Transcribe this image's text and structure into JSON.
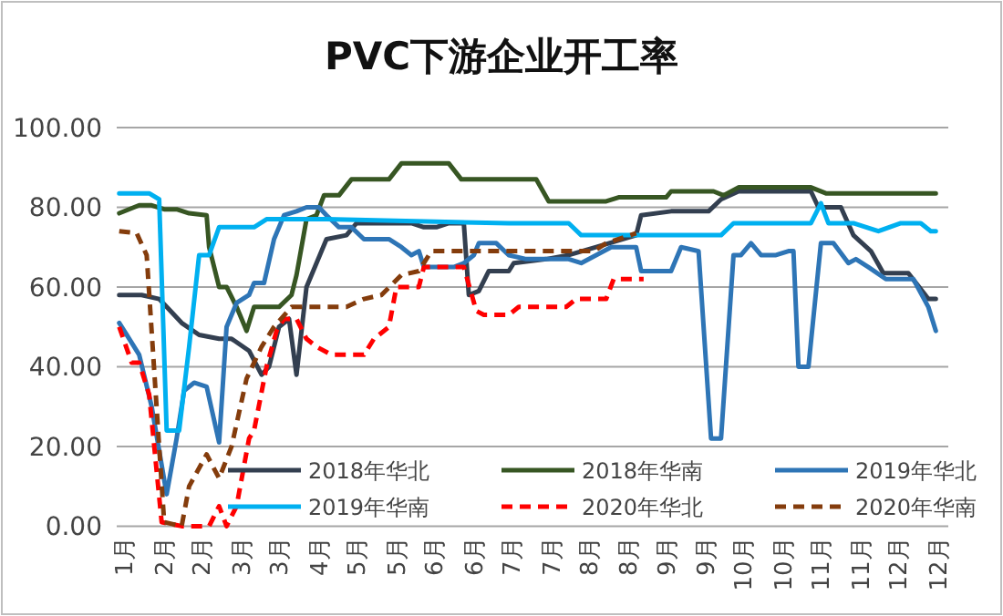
{
  "chart_data": {
    "type": "line",
    "title": "PVC下游企业开工率",
    "xlim": [
      "--01-25",
      "--12-24"
    ],
    "ylim": [
      0,
      100
    ],
    "xticks": [
      {
        "value": "--01-28",
        "label": "1月"
      },
      {
        "value": "--02-13",
        "label": "2月"
      },
      {
        "value": "--02-28",
        "label": "2月"
      },
      {
        "value": "--03-16",
        "label": "3月"
      },
      {
        "value": "--03-31",
        "label": "3月"
      },
      {
        "value": "--04-16",
        "label": "4月"
      },
      {
        "value": "--05-01",
        "label": "5月"
      },
      {
        "value": "--05-17",
        "label": "5月"
      },
      {
        "value": "--06-01",
        "label": "6月"
      },
      {
        "value": "--06-17",
        "label": "6月"
      },
      {
        "value": "--07-02",
        "label": "7月"
      },
      {
        "value": "--07-18",
        "label": "7月"
      },
      {
        "value": "--08-02",
        "label": "8月"
      },
      {
        "value": "--08-18",
        "label": "8月"
      },
      {
        "value": "--09-02",
        "label": "9月"
      },
      {
        "value": "--09-18",
        "label": "9月"
      },
      {
        "value": "--10-03",
        "label": "10月"
      },
      {
        "value": "--10-19",
        "label": "10月"
      },
      {
        "value": "--11-03",
        "label": "11月"
      },
      {
        "value": "--11-19",
        "label": "11月"
      },
      {
        "value": "--12-04",
        "label": "12月"
      },
      {
        "value": "--12-20",
        "label": "12月"
      }
    ],
    "yticks": [
      {
        "value": 0,
        "label": "0.00"
      },
      {
        "value": 20,
        "label": "20.00"
      },
      {
        "value": 40,
        "label": "40.00"
      },
      {
        "value": 60,
        "label": "60.00"
      },
      {
        "value": 80,
        "label": "80.00"
      },
      {
        "value": 100,
        "label": "100.00"
      }
    ],
    "grid": "y",
    "legend": "bottom",
    "marker": "none",
    "series": [
      {
        "name": "2018年华北",
        "color": "#333f50",
        "line_style": "solid",
        "x": [
          "--01-26",
          "--02-04",
          "--02-11",
          "--02-20",
          "--02-27",
          "--03-07",
          "--03-12",
          "--03-19",
          "--03-24",
          "--03-27",
          "--03-31",
          "--04-04",
          "--04-07",
          "--04-11",
          "--04-19",
          "--04-27",
          "--05-01",
          "--05-14",
          "--05-23",
          "--05-28",
          "--06-02",
          "--06-07",
          "--06-13",
          "--06-15",
          "--06-19",
          "--06-23",
          "--07-01",
          "--07-03",
          "--07-16",
          "--07-25",
          "--08-05",
          "--08-21",
          "--08-23",
          "--09-04",
          "--09-19",
          "--09-24",
          "--10-01",
          "--10-16",
          "--10-30",
          "--11-02",
          "--11-11",
          "--11-16",
          "--11-23",
          "--11-28",
          "--12-08",
          "--12-16",
          "--12-19"
        ],
        "values": [
          58,
          58,
          57,
          51,
          48,
          47,
          47,
          44,
          38,
          40,
          50,
          52,
          38,
          60,
          72,
          73,
          76,
          76,
          76,
          75,
          75,
          76,
          76,
          58,
          59,
          64,
          64,
          66,
          67,
          68,
          70,
          73,
          78,
          79,
          79,
          82,
          84,
          84,
          84,
          80,
          80,
          73,
          69,
          63.5,
          63.5,
          57,
          57
        ]
      },
      {
        "name": "2018年华南",
        "color": "#375623",
        "line_style": "solid",
        "x": [
          "--01-26",
          "--02-03",
          "--02-08",
          "--02-13",
          "--02-18",
          "--02-23",
          "--03-02",
          "--03-03",
          "--03-07",
          "--03-10",
          "--03-14",
          "--03-18",
          "--03-21",
          "--03-31",
          "--04-05",
          "--04-07",
          "--04-11",
          "--04-15",
          "--04-18",
          "--04-24",
          "--04-29",
          "--05-09",
          "--05-14",
          "--05-19",
          "--06-07",
          "--06-12",
          "--07-01",
          "--07-12",
          "--07-17",
          "--08-09",
          "--08-14",
          "--09-02",
          "--09-04",
          "--09-21",
          "--09-25",
          "--10-01",
          "--10-30",
          "--11-05",
          "--12-19"
        ],
        "values": [
          78.5,
          80.5,
          80.5,
          79.5,
          79.5,
          78.5,
          78,
          70,
          60,
          60,
          55,
          49,
          55,
          55,
          58,
          63,
          77,
          78,
          83,
          83,
          87,
          87,
          87,
          91,
          91,
          87,
          87,
          87,
          81.5,
          81.5,
          82.5,
          82.5,
          84,
          84,
          83,
          85,
          85,
          83.5,
          83.5
        ]
      },
      {
        "name": "2019年华北",
        "color": "#2e75b6",
        "line_style": "solid",
        "x": [
          "--01-26",
          "--01-29",
          "--02-03",
          "--02-08",
          "--02-14",
          "--02-18",
          "--02-21",
          "--02-25",
          "--03-02",
          "--03-07",
          "--03-10",
          "--03-14",
          "--03-19",
          "--03-21",
          "--03-25",
          "--03-29",
          "--04-02",
          "--04-07",
          "--04-11",
          "--04-16",
          "--04-19",
          "--04-24",
          "--04-29",
          "--05-04",
          "--05-14",
          "--05-19",
          "--05-23",
          "--05-26",
          "--05-28",
          "--06-09",
          "--06-13",
          "--06-17",
          "--06-19",
          "--06-26",
          "--07-01",
          "--07-08",
          "--07-16",
          "--07-25",
          "--07-30",
          "--08-05",
          "--08-11",
          "--08-21",
          "--08-23",
          "--09-04",
          "--09-08",
          "--09-15",
          "--09-20",
          "--09-24",
          "--09-29",
          "--10-02",
          "--10-06",
          "--10-10",
          "--10-16",
          "--10-21",
          "--10-23",
          "--10-25",
          "--10-29",
          "--11-03",
          "--11-08",
          "--11-14",
          "--11-17",
          "--11-22",
          "--11-29",
          "--12-10",
          "--12-16",
          "--12-19"
        ],
        "values": [
          51,
          48,
          43,
          30,
          8,
          22,
          34,
          36,
          35,
          21,
          50,
          56,
          58,
          61,
          61,
          72,
          78,
          79,
          80,
          80,
          78,
          75,
          75,
          72,
          72,
          70,
          68,
          69,
          65,
          65,
          66,
          68,
          71,
          71,
          68,
          67,
          67,
          67,
          66,
          68,
          70,
          70,
          64,
          64,
          70,
          69,
          22,
          22,
          68,
          68,
          71,
          68,
          68,
          69,
          69,
          40,
          40,
          71,
          71,
          66,
          67,
          65,
          62,
          62,
          55,
          49
        ]
      },
      {
        "name": "2019年华南",
        "color": "#00b0f0",
        "line_style": "solid",
        "x": [
          "--01-26",
          "--02-07",
          "--02-11",
          "--02-14",
          "--02-19",
          "--02-23",
          "--02-27",
          "--03-03",
          "--03-07",
          "--03-21",
          "--03-26",
          "--04-10",
          "--04-19",
          "--07-01",
          "--07-25",
          "--07-30",
          "--09-24",
          "--09-29",
          "--10-30",
          "--11-03",
          "--11-06",
          "--11-16",
          "--11-26",
          "--12-05",
          "--12-13",
          "--12-17",
          "--12-19"
        ],
        "values": [
          83.5,
          83.5,
          82,
          24,
          24,
          45,
          68,
          68,
          75,
          75,
          77,
          77,
          77,
          76,
          76,
          73,
          73,
          76,
          76,
          81,
          76,
          76,
          74,
          76,
          76,
          74,
          74
        ]
      },
      {
        "name": "2020年华北",
        "color": "#ff0000",
        "line_style": "dashed",
        "x": [
          "--01-26",
          "--01-31",
          "--02-03",
          "--02-07",
          "--02-12",
          "--02-20",
          "--02-27",
          "--03-03",
          "--03-07",
          "--03-10",
          "--03-14",
          "--03-19",
          "--03-21",
          "--03-26",
          "--03-30",
          "--04-02",
          "--04-07",
          "--04-11",
          "--04-15",
          "--04-21",
          "--05-04",
          "--05-08",
          "--05-14",
          "--05-17",
          "--05-26",
          "--05-28",
          "--06-13",
          "--06-18",
          "--06-21",
          "--07-01",
          "--07-05",
          "--07-24",
          "--07-28",
          "--08-09",
          "--08-12",
          "--08-24"
        ],
        "values": [
          50,
          41,
          41,
          33,
          1,
          0,
          0,
          0,
          5,
          0,
          5,
          22,
          24,
          40,
          49,
          52,
          52,
          47,
          45,
          43,
          43,
          47,
          50,
          60,
          60,
          65,
          65,
          54,
          53,
          53,
          55,
          55,
          57,
          57,
          62,
          62
        ]
      },
      {
        "name": "2020年华南",
        "color": "#843c0c",
        "line_style": "dashed",
        "x": [
          "--01-26",
          "--02-02",
          "--02-06",
          "--02-11",
          "--02-13",
          "--02-20",
          "--02-23",
          "--03-02",
          "--03-07",
          "--03-12",
          "--03-18",
          "--03-24",
          "--03-29",
          "--04-05",
          "--04-27",
          "--05-04",
          "--05-11",
          "--05-19",
          "--05-26",
          "--05-31",
          "--07-01",
          "--08-04",
          "--08-09",
          "--08-21"
        ],
        "values": [
          74,
          73.5,
          68,
          20,
          1,
          0,
          10,
          18,
          12,
          20,
          37,
          45,
          50,
          55,
          55,
          57,
          58,
          63,
          64,
          69,
          69,
          69,
          71,
          73.5
        ]
      }
    ]
  }
}
